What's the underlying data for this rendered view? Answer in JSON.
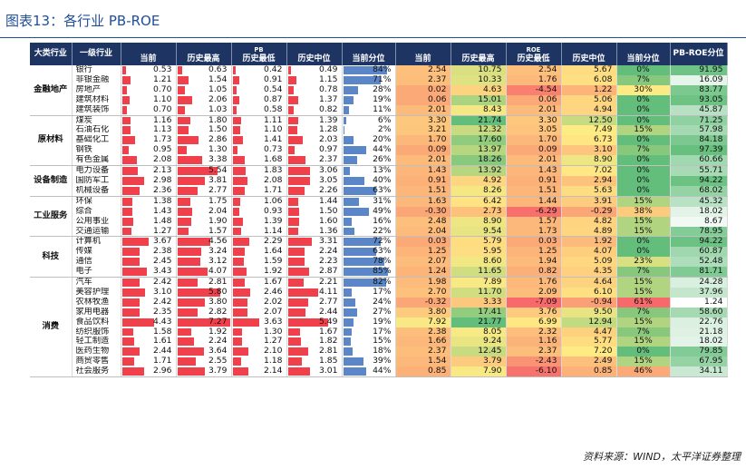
{
  "title": "图表13：各行业 PB-ROE",
  "source": "资料来源：WIND，太平洋证券整理",
  "colors": {
    "header_bg": "#1e3563",
    "bar_red": "#f0404b",
    "bar_blue": "#5b87c8"
  },
  "headers": {
    "sector": "大类行业",
    "industry": "一级行业",
    "pb_group": "PB",
    "roe_group": "ROE",
    "pb_roe": "PB-ROE分位",
    "cols": [
      "当前",
      "历史最高",
      "历史最低",
      "历史中位",
      "当前分位",
      "当前",
      "历史最高",
      "历史最低",
      "历史中位",
      "当前分位"
    ]
  },
  "groups": [
    {
      "sector": "金融地产",
      "rows": [
        {
          "name": "银行",
          "pb": [
            "0.53",
            "0.63",
            "0.42",
            "0.49"
          ],
          "pb_pct": "84%",
          "roe": [
            "2.54",
            "10.75",
            "2.54",
            "5.67"
          ],
          "roe_pct": "0%",
          "score": "91.95"
        },
        {
          "name": "非银金融",
          "pb": [
            "1.21",
            "1.54",
            "0.91",
            "1.15"
          ],
          "pb_pct": "71%",
          "roe": [
            "2.37",
            "10.33",
            "1.76",
            "6.08"
          ],
          "roe_pct": "7%",
          "score": "16.09"
        },
        {
          "name": "房地产",
          "pb": [
            "0.70",
            "1.05",
            "0.54",
            "0.78"
          ],
          "pb_pct": "28%",
          "roe": [
            "0.02",
            "4.63",
            "-4.54",
            "1.22"
          ],
          "roe_pct": "30%",
          "score": "83.77"
        },
        {
          "name": "建筑材料",
          "pb": [
            "1.10",
            "2.06",
            "0.87",
            "1.37"
          ],
          "pb_pct": "19%",
          "roe": [
            "0.06",
            "15.01",
            "0.06",
            "5.06"
          ],
          "roe_pct": "0%",
          "score": "93.05"
        },
        {
          "name": "建筑装饰",
          "pb": [
            "0.70",
            "1.03",
            "0.58",
            "0.82"
          ],
          "pb_pct": "11%",
          "roe": [
            "2.01",
            "8.43",
            "2.01",
            "4.94"
          ],
          "roe_pct": "0%",
          "score": "45.87"
        }
      ]
    },
    {
      "sector": "原材料",
      "rows": [
        {
          "name": "煤炭",
          "pb": [
            "1.16",
            "1.80",
            "1.11",
            "1.39"
          ],
          "pb_pct": "6%",
          "roe": [
            "3.30",
            "21.74",
            "3.30",
            "12.50"
          ],
          "roe_pct": "0%",
          "score": "71.25"
        },
        {
          "name": "石油石化",
          "pb": [
            "1.13",
            "1.50",
            "1.10",
            "1.28"
          ],
          "pb_pct": "2%",
          "roe": [
            "3.21",
            "12.32",
            "3.05",
            "7.49"
          ],
          "roe_pct": "15%",
          "score": "57.98"
        },
        {
          "name": "基础化工",
          "pb": [
            "1.73",
            "2.86",
            "1.41",
            "2.03"
          ],
          "pb_pct": "20%",
          "roe": [
            "1.70",
            "17.60",
            "1.70",
            "6.73"
          ],
          "roe_pct": "0%",
          "score": "84.18"
        },
        {
          "name": "钢铁",
          "pb": [
            "0.95",
            "1.30",
            "0.73",
            "0.97"
          ],
          "pb_pct": "44%",
          "roe": [
            "0.09",
            "13.97",
            "0.09",
            "3.10"
          ],
          "roe_pct": "7%",
          "score": "97.39"
        },
        {
          "name": "有色金属",
          "pb": [
            "2.08",
            "3.38",
            "1.68",
            "2.37"
          ],
          "pb_pct": "26%",
          "roe": [
            "2.01",
            "18.26",
            "2.01",
            "8.90"
          ],
          "roe_pct": "0%",
          "score": "60.66"
        }
      ]
    },
    {
      "sector": "设备制造",
      "rows": [
        {
          "name": "电力设备",
          "pb": [
            "2.13",
            "5.54",
            "1.83",
            "3.06"
          ],
          "pb_pct": "13%",
          "roe": [
            "1.43",
            "13.92",
            "1.43",
            "7.02"
          ],
          "roe_pct": "0%",
          "score": "55.71"
        },
        {
          "name": "国防军工",
          "pb": [
            "2.98",
            "3.81",
            "2.08",
            "3.05"
          ],
          "pb_pct": "40%",
          "roe": [
            "0.91",
            "4.92",
            "0.91",
            "2.94"
          ],
          "roe_pct": "0%",
          "score": "94.22"
        },
        {
          "name": "机械设备",
          "pb": [
            "2.36",
            "2.77",
            "1.71",
            "2.26"
          ],
          "pb_pct": "63%",
          "roe": [
            "1.51",
            "8.26",
            "1.51",
            "5.63"
          ],
          "roe_pct": "0%",
          "score": "68.02"
        }
      ]
    },
    {
      "sector": "工业服务",
      "rows": [
        {
          "name": "环保",
          "pb": [
            "1.38",
            "1.75",
            "1.06",
            "1.44"
          ],
          "pb_pct": "31%",
          "roe": [
            "1.63",
            "6.42",
            "1.44",
            "3.91"
          ],
          "roe_pct": "15%",
          "score": "45.32"
        },
        {
          "name": "综合",
          "pb": [
            "1.43",
            "2.04",
            "0.93",
            "1.50"
          ],
          "pb_pct": "49%",
          "roe": [
            "-0.30",
            "2.73",
            "-6.29",
            "-0.29"
          ],
          "roe_pct": "38%",
          "score": "18.02"
        },
        {
          "name": "公用事业",
          "pb": [
            "1.48",
            "1.90",
            "1.39",
            "1.60"
          ],
          "pb_pct": "16%",
          "roe": [
            "2.48",
            "8.90",
            "1.57",
            "4.82"
          ],
          "roe_pct": "15%",
          "score": "8.67"
        },
        {
          "name": "交通运输",
          "pb": [
            "1.27",
            "1.57",
            "1.14",
            "1.36"
          ],
          "pb_pct": "22%",
          "roe": [
            "2.04",
            "9.54",
            "1.73",
            "4.89"
          ],
          "roe_pct": "15%",
          "score": "78.95"
        }
      ]
    },
    {
      "sector": "科技",
      "rows": [
        {
          "name": "计算机",
          "pb": [
            "3.67",
            "4.56",
            "2.29",
            "3.31"
          ],
          "pb_pct": "72%",
          "roe": [
            "0.03",
            "5.79",
            "0.03",
            "1.92"
          ],
          "roe_pct": "0%",
          "score": "94.22"
        },
        {
          "name": "传媒",
          "pb": [
            "2.38",
            "3.24",
            "1.64",
            "2.24"
          ],
          "pb_pct": "63%",
          "roe": [
            "1.25",
            "5.95",
            "1.25",
            "4.07"
          ],
          "roe_pct": "0%",
          "score": "60.87"
        },
        {
          "name": "通信",
          "pb": [
            "2.45",
            "3.12",
            "1.59",
            "2.23"
          ],
          "pb_pct": "78%",
          "roe": [
            "2.07",
            "8.60",
            "1.94",
            "5.09"
          ],
          "roe_pct": "23%",
          "score": "52.48"
        },
        {
          "name": "电子",
          "pb": [
            "3.43",
            "4.07",
            "1.92",
            "2.87"
          ],
          "pb_pct": "85%",
          "roe": [
            "1.24",
            "11.65",
            "0.82",
            "4.35"
          ],
          "roe_pct": "7%",
          "score": "81.71"
        }
      ]
    },
    {
      "sector": "消费",
      "rows": [
        {
          "name": "汽车",
          "pb": [
            "2.42",
            "2.81",
            "1.67",
            "2.21"
          ],
          "pb_pct": "82%",
          "roe": [
            "1.98",
            "7.89",
            "1.76",
            "4.64"
          ],
          "roe_pct": "15%",
          "score": "24.28"
        },
        {
          "name": "美容护理",
          "pb": [
            "3.10",
            "5.80",
            "2.46",
            "4.11"
          ],
          "pb_pct": "17%",
          "roe": [
            "2.70",
            "11.70",
            "2.09",
            "6.10"
          ],
          "roe_pct": "15%",
          "score": "37.96"
        },
        {
          "name": "农林牧渔",
          "pb": [
            "2.42",
            "3.80",
            "2.02",
            "2.77"
          ],
          "pb_pct": "24%",
          "roe": [
            "-0.32",
            "3.33",
            "-7.09",
            "-0.94"
          ],
          "roe_pct": "61%",
          "score": "1.24"
        },
        {
          "name": "家用电器",
          "pb": [
            "2.35",
            "2.82",
            "2.07",
            "2.44"
          ],
          "pb_pct": "27%",
          "roe": [
            "3.80",
            "17.41",
            "3.76",
            "9.50"
          ],
          "roe_pct": "7%",
          "score": "58.60"
        },
        {
          "name": "食品饮料",
          "pb": [
            "4.43",
            "7.27",
            "3.63",
            "5.49"
          ],
          "pb_pct": "19%",
          "roe": [
            "7.92",
            "21.77",
            "6.99",
            "12.94"
          ],
          "roe_pct": "15%",
          "score": "22.76"
        },
        {
          "name": "纺织服饰",
          "pb": [
            "1.58",
            "1.92",
            "1.30",
            "1.67"
          ],
          "pb_pct": "17%",
          "roe": [
            "2.38",
            "8.05",
            "2.32",
            "4.47"
          ],
          "roe_pct": "7%",
          "score": "21.18"
        },
        {
          "name": "轻工制造",
          "pb": [
            "1.61",
            "2.24",
            "1.27",
            "1.82"
          ],
          "pb_pct": "15%",
          "roe": [
            "1.66",
            "9.24",
            "1.16",
            "5.77"
          ],
          "roe_pct": "15%",
          "score": "18.02"
        },
        {
          "name": "医药生物",
          "pb": [
            "2.44",
            "3.64",
            "2.10",
            "2.81"
          ],
          "pb_pct": "18%",
          "roe": [
            "2.37",
            "12.45",
            "2.37",
            "7.20"
          ],
          "roe_pct": "0%",
          "score": "79.85"
        },
        {
          "name": "商贸零售",
          "pb": [
            "1.71",
            "2.55",
            "1.18",
            "1.85"
          ],
          "pb_pct": "39%",
          "roe": [
            "1.54",
            "3.79",
            "-2.43",
            "2.49"
          ],
          "roe_pct": "15%",
          "score": "67.95"
        },
        {
          "name": "社会服务",
          "pb": [
            "2.96",
            "3.79",
            "2.14",
            "3.01"
          ],
          "pb_pct": "44%",
          "roe": [
            "0.85",
            "7.90",
            "-6.10",
            "0.85"
          ],
          "roe_pct": "46%",
          "score": "34.11"
        }
      ]
    }
  ]
}
